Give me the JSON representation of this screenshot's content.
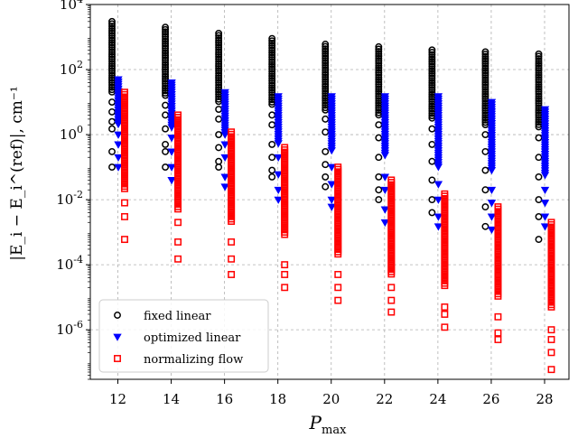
{
  "chart_data": {
    "type": "scatter",
    "xlabel_main": "P",
    "xlabel_sub": "max",
    "ylabel": "|E_i − E_i^(ref)|, cm⁻¹",
    "yscale": "log",
    "ylim": [
      3e-08,
      10000
    ],
    "x_categories": [
      12,
      14,
      16,
      18,
      20,
      22,
      24,
      26,
      28
    ],
    "y_tick_exponents": [
      -6,
      -4,
      -2,
      0,
      2,
      4
    ],
    "grid": true,
    "legend_position": "lower-left",
    "series": [
      {
        "name": "fixed linear",
        "marker": "circle",
        "color": "#000000",
        "points": [
          {
            "x": 12,
            "ymax": 3000,
            "ydense_min": 20,
            "ysparse": [
              10,
              5,
              2.5,
              1.5,
              0.3,
              0.1
            ]
          },
          {
            "x": 14,
            "ymax": 2000,
            "ydense_min": 15,
            "ysparse": [
              8,
              4,
              1.5,
              0.5,
              0.3,
              0.1
            ]
          },
          {
            "x": 16,
            "ymax": 1300,
            "ydense_min": 10,
            "ysparse": [
              6,
              3,
              1,
              0.4,
              0.15,
              0.1
            ]
          },
          {
            "x": 18,
            "ymax": 900,
            "ydense_min": 8,
            "ysparse": [
              4,
              2,
              0.5,
              0.2,
              0.08,
              0.05
            ]
          },
          {
            "x": 20,
            "ymax": 600,
            "ydense_min": 5,
            "ysparse": [
              3,
              1.2,
              0.3,
              0.12,
              0.05,
              0.025
            ]
          },
          {
            "x": 22,
            "ymax": 500,
            "ydense_min": 4,
            "ysparse": [
              2,
              0.8,
              0.2,
              0.05,
              0.02,
              0.01
            ]
          },
          {
            "x": 24,
            "ymax": 400,
            "ydense_min": 3,
            "ysparse": [
              1.5,
              0.5,
              0.15,
              0.04,
              0.01,
              0.004
            ]
          },
          {
            "x": 26,
            "ymax": 350,
            "ydense_min": 2,
            "ysparse": [
              1,
              0.3,
              0.08,
              0.02,
              0.006,
              0.0015
            ]
          },
          {
            "x": 28,
            "ymax": 300,
            "ydense_min": 1.5,
            "ysparse": [
              0.8,
              0.2,
              0.05,
              0.01,
              0.003,
              0.0006
            ]
          }
        ]
      },
      {
        "name": "optimized linear",
        "marker": "triangle-down",
        "color": "#0000ff",
        "points": [
          {
            "x": 12,
            "ymax": 50,
            "ydense_min": 2,
            "ysparse": [
              1,
              0.5,
              0.2,
              0.1
            ]
          },
          {
            "x": 14,
            "ymax": 40,
            "ydense_min": 1.5,
            "ysparse": [
              0.8,
              0.3,
              0.1,
              0.04
            ]
          },
          {
            "x": 16,
            "ymax": 20,
            "ydense_min": 1,
            "ysparse": [
              0.5,
              0.2,
              0.05,
              0.025
            ]
          },
          {
            "x": 18,
            "ymax": 15,
            "ydense_min": 0.5,
            "ysparse": [
              0.2,
              0.06,
              0.02,
              0.01
            ]
          },
          {
            "x": 20,
            "ymax": 15,
            "ydense_min": 0.3,
            "ysparse": [
              0.1,
              0.03,
              0.01,
              0.006
            ]
          },
          {
            "x": 22,
            "ymax": 15,
            "ydense_min": 0.2,
            "ysparse": [
              0.05,
              0.02,
              0.005,
              0.002
            ]
          },
          {
            "x": 24,
            "ymax": 15,
            "ydense_min": 0.1,
            "ysparse": [
              0.03,
              0.01,
              0.003,
              0.0015
            ]
          },
          {
            "x": 26,
            "ymax": 10,
            "ydense_min": 0.08,
            "ysparse": [
              0.02,
              0.008,
              0.003,
              0.0012
            ]
          },
          {
            "x": 28,
            "ymax": 6,
            "ydense_min": 0.05,
            "ysparse": [
              0.02,
              0.008,
              0.003,
              0.0015
            ]
          }
        ]
      },
      {
        "name": "normalizing flow",
        "marker": "square",
        "color": "#ff0000",
        "points": [
          {
            "x": 12,
            "ymax": 20,
            "ydense_min": 0.02,
            "ysparse": [
              0.008,
              0.003,
              0.0006
            ]
          },
          {
            "x": 14,
            "ymax": 4,
            "ydense_min": 0.005,
            "ysparse": [
              0.002,
              0.0005,
              0.00015
            ]
          },
          {
            "x": 16,
            "ymax": 1.2,
            "ydense_min": 0.002,
            "ysparse": [
              0.0005,
              0.00015,
              5e-05
            ]
          },
          {
            "x": 18,
            "ymax": 0.4,
            "ydense_min": 0.0008,
            "ysparse": [
              0.0001,
              5e-05,
              2e-05
            ]
          },
          {
            "x": 20,
            "ymax": 0.1,
            "ydense_min": 0.0002,
            "ysparse": [
              5e-05,
              2e-05,
              8e-06
            ]
          },
          {
            "x": 22,
            "ymax": 0.04,
            "ydense_min": 5e-05,
            "ysparse": [
              2e-05,
              8e-06,
              3.5e-06
            ]
          },
          {
            "x": 24,
            "ymax": 0.015,
            "ydense_min": 2e-05,
            "ysparse": [
              5e-06,
              3e-06,
              1.2e-06
            ]
          },
          {
            "x": 26,
            "ymax": 0.006,
            "ydense_min": 1e-05,
            "ysparse": [
              2.5e-06,
              8e-07,
              5e-07
            ]
          },
          {
            "x": 28,
            "ymax": 0.002,
            "ydense_min": 5e-06,
            "ysparse": [
              1e-06,
              5e-07,
              2e-07,
              6e-08
            ]
          }
        ]
      }
    ]
  }
}
